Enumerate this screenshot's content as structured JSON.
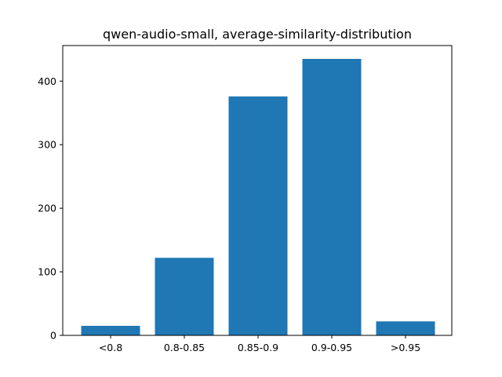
{
  "chart_data": {
    "type": "bar",
    "title": "qwen-audio-small, average-similarity-distribution",
    "xlabel": "",
    "ylabel": "",
    "categories": [
      "<0.8",
      "0.8-0.85",
      "0.85-0.9",
      "0.9-0.95",
      ">0.95"
    ],
    "values": [
      15,
      122,
      376,
      435,
      22
    ],
    "ylim": [
      0,
      456
    ],
    "yticks": [
      0,
      100,
      200,
      300,
      400
    ],
    "grid": false,
    "bar_color": "#1f77b4"
  }
}
